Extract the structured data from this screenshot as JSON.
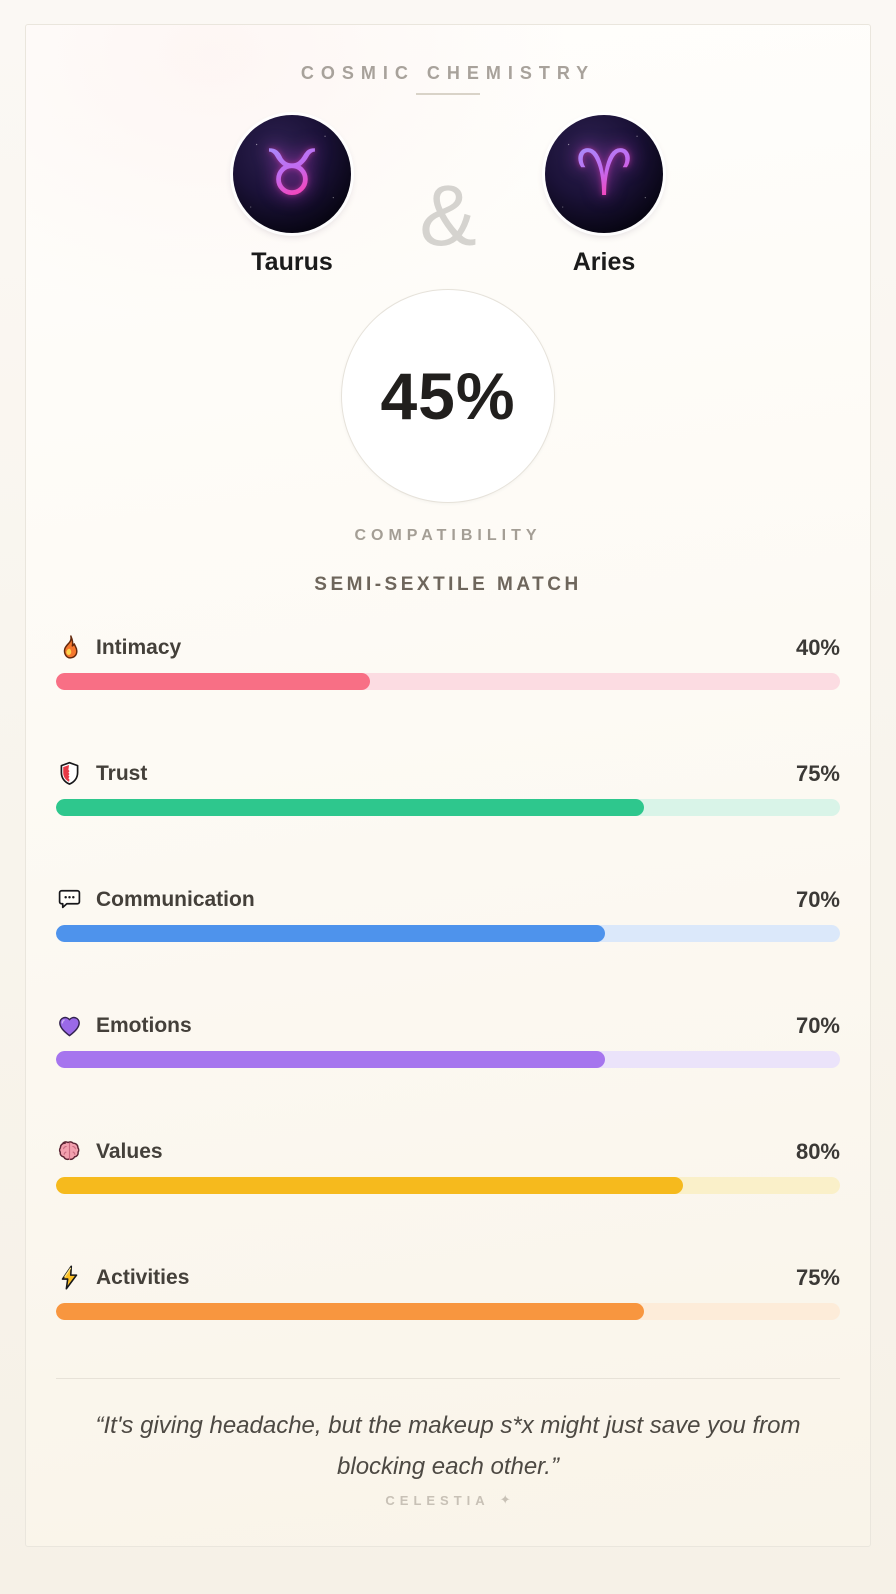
{
  "header": {
    "title": "COSMIC CHEMISTRY"
  },
  "pair": {
    "left": {
      "name": "Taurus",
      "symbol": "♉"
    },
    "right": {
      "name": "Aries",
      "symbol": "♈"
    },
    "ampersand": "&"
  },
  "score": {
    "value": "45%",
    "label": "COMPATIBILITY"
  },
  "match_type": "SEMI-SEXTILE MATCH",
  "metrics": [
    {
      "label": "Intimacy",
      "value": "40%",
      "percent": 40,
      "icon": "fire-icon",
      "color": "#f86f85",
      "track": "#fcdce2"
    },
    {
      "label": "Trust",
      "value": "75%",
      "percent": 75,
      "icon": "shield-icon",
      "color": "#2ec78d",
      "track": "#d9f4e8"
    },
    {
      "label": "Communication",
      "value": "70%",
      "percent": 70,
      "icon": "speech-bubble-icon",
      "color": "#4e93ec",
      "track": "#dbe8fa"
    },
    {
      "label": "Emotions",
      "value": "70%",
      "percent": 70,
      "icon": "purple-heart-icon",
      "color": "#a675ee",
      "track": "#ebe3fa"
    },
    {
      "label": "Values",
      "value": "80%",
      "percent": 80,
      "icon": "brain-icon",
      "color": "#f6ba1d",
      "track": "#faf0c9"
    },
    {
      "label": "Activities",
      "value": "75%",
      "percent": 75,
      "icon": "lightning-icon",
      "color": "#f8963f",
      "track": "#fdecd9"
    }
  ],
  "quote": "“It's giving headache, but the makeup s*x might just save you from blocking each other.”",
  "footer": {
    "brand": "CELESTIA",
    "sparkle": "✦"
  }
}
